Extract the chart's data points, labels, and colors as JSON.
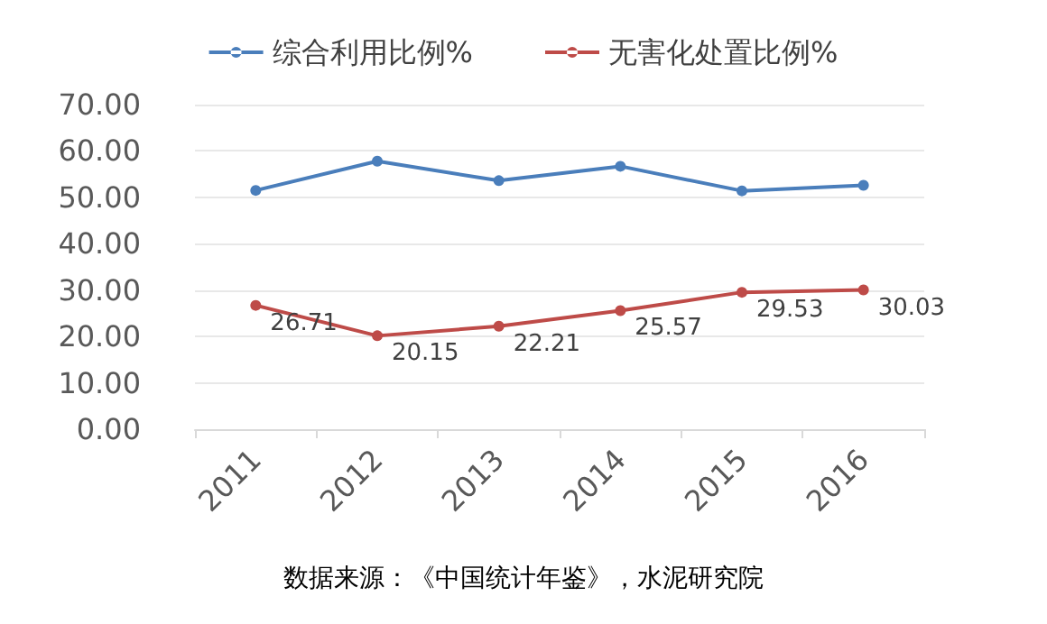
{
  "chart_data": {
    "type": "line",
    "categories": [
      "2011",
      "2012",
      "2013",
      "2014",
      "2015",
      "2016"
    ],
    "series": [
      {
        "name": "综合利用比例%",
        "color": "#4a7ebb",
        "values": [
          51.5,
          57.8,
          53.6,
          56.7,
          51.4,
          52.6
        ]
      },
      {
        "name": "无害化处置比例%",
        "color": "#be4b48",
        "values": [
          26.71,
          20.15,
          22.21,
          25.57,
          29.53,
          30.03
        ],
        "value_labels": [
          "26.71",
          "20.15",
          "22.21",
          "25.57",
          "29.53",
          "30.03"
        ]
      }
    ],
    "ylim": [
      0,
      70
    ],
    "yticks": [
      {
        "value": 0,
        "label": "0.00"
      },
      {
        "value": 10,
        "label": "10.00"
      },
      {
        "value": 20,
        "label": "20.00"
      },
      {
        "value": 30,
        "label": "30.00"
      },
      {
        "value": 40,
        "label": "40.00"
      },
      {
        "value": 50,
        "label": "50.00"
      },
      {
        "value": 60,
        "label": "60.00"
      },
      {
        "value": 70,
        "label": "70.00"
      }
    ],
    "grid": "y",
    "legend": "top",
    "marker": "circle",
    "line_style": "solid",
    "annotations": [
      "数据来源：《中国统计年鉴》，水泥研究院"
    ]
  }
}
